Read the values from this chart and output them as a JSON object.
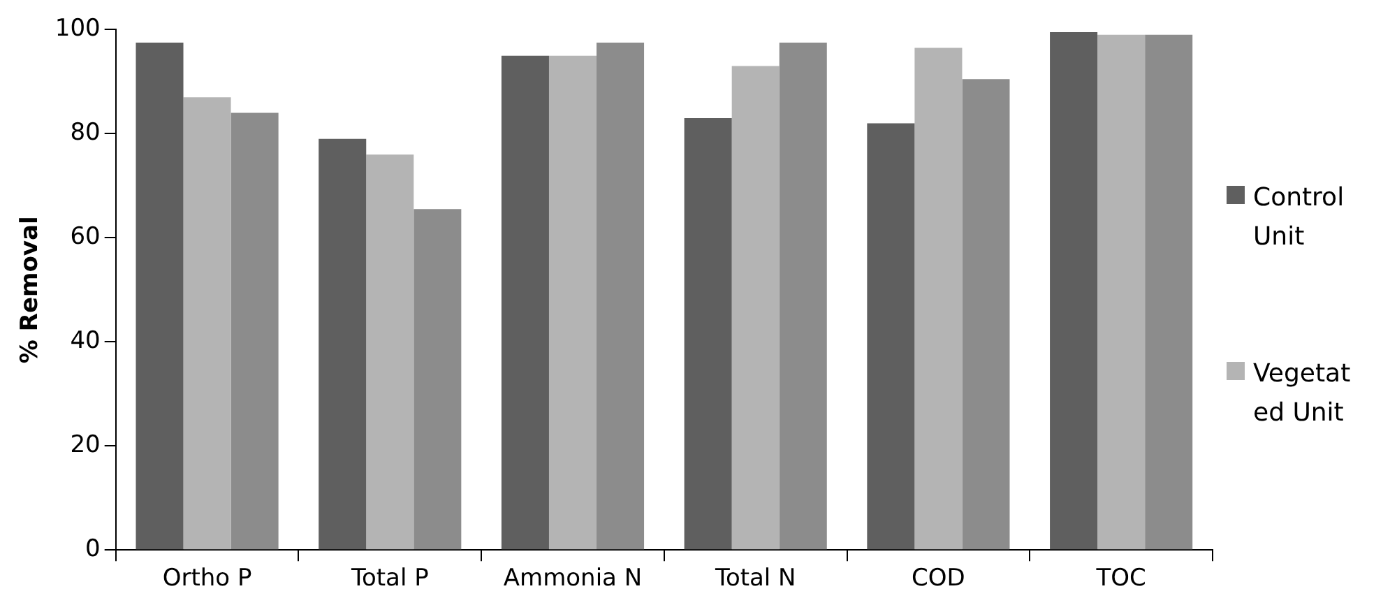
{
  "chart_data": {
    "type": "bar",
    "ylabel": "% Removal",
    "categories": [
      "Ortho P",
      "Total P",
      "Ammonia N",
      "Total N",
      "COD",
      "TOC"
    ],
    "series": [
      {
        "name": "Control Unit",
        "color": "#5f5f5f",
        "values": [
          97.5,
          79,
          95,
          83,
          82,
          99.5
        ]
      },
      {
        "name": "Vegetated Unit",
        "color": "#b4b4b4",
        "values": [
          87,
          76,
          95,
          93,
          96.5,
          99
        ]
      },
      {
        "color": "#8c8c8c",
        "values": [
          84,
          65.5,
          97.5,
          97.5,
          90.5,
          99
        ]
      }
    ],
    "ylim": [
      0,
      100
    ],
    "yticks": [
      0,
      20,
      40,
      60,
      80,
      100
    ],
    "grid": false,
    "legend": "right"
  }
}
